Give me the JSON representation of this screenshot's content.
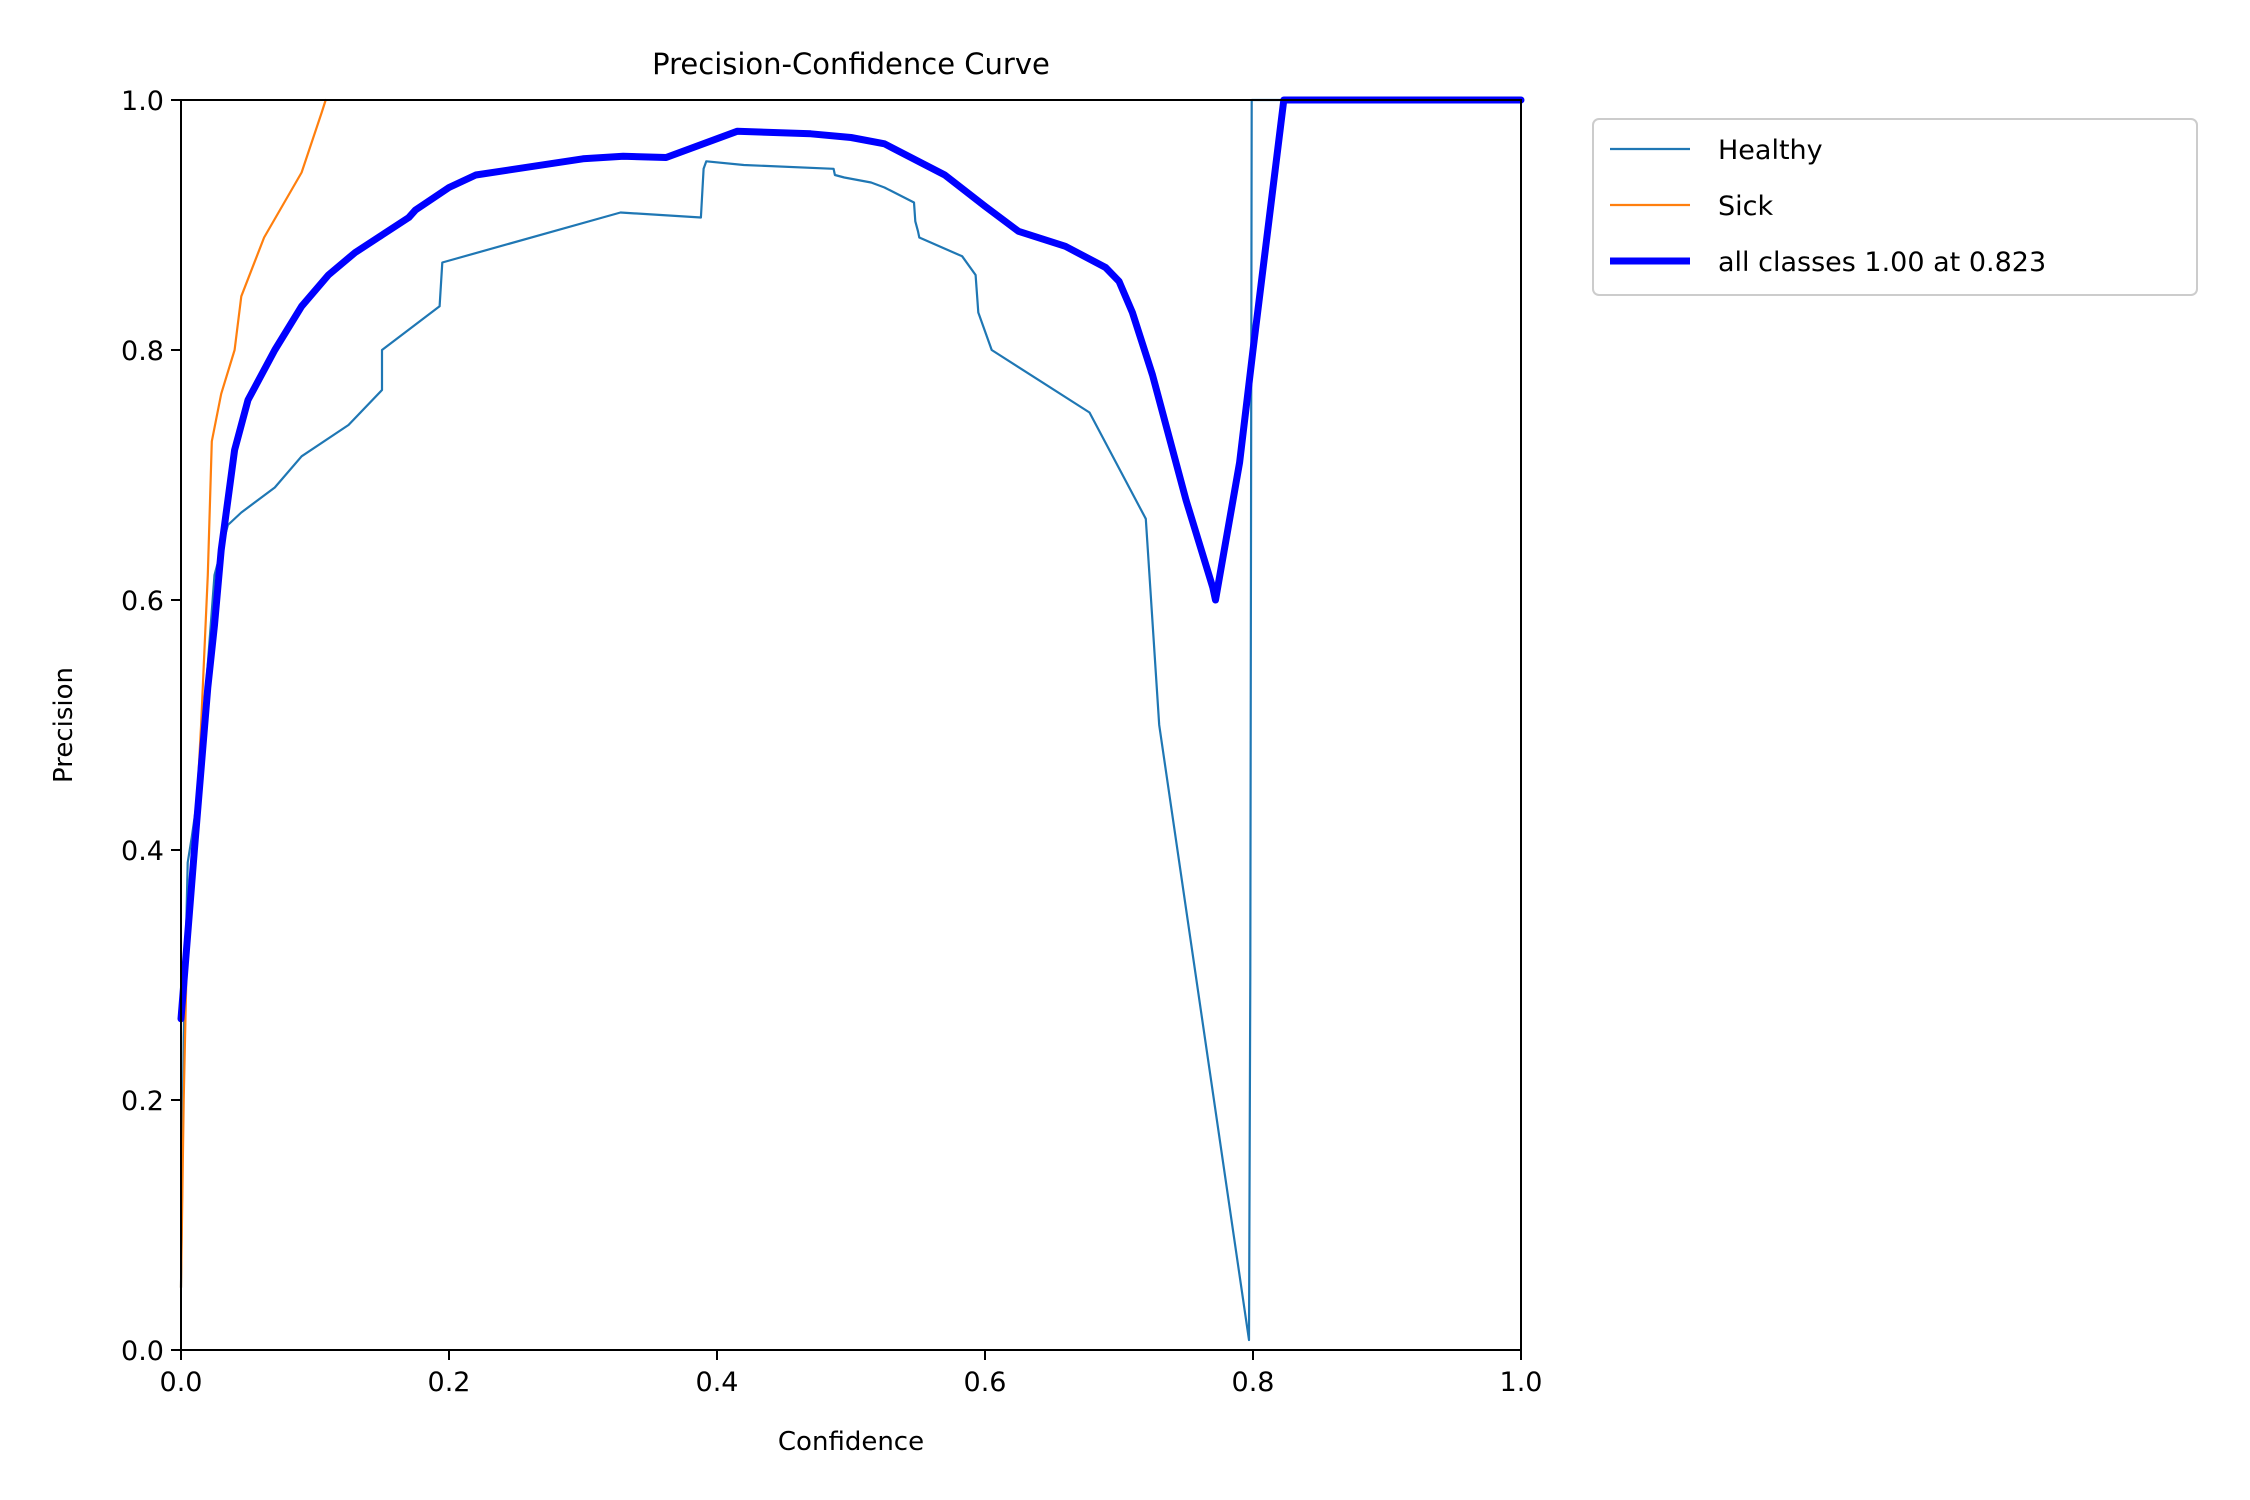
{
  "chart_data": {
    "type": "line",
    "title": "Precision-Confidence Curve",
    "xlabel": "Confidence",
    "ylabel": "Precision",
    "xlim": [
      0,
      1
    ],
    "ylim": [
      0,
      1
    ],
    "xticks": [
      "0.0",
      "0.2",
      "0.4",
      "0.6",
      "0.8",
      "1.0"
    ],
    "yticks": [
      "0.0",
      "0.2",
      "0.4",
      "0.6",
      "0.8",
      "1.0"
    ],
    "grid": false,
    "legend_position": "outside-top-right",
    "series": [
      {
        "name": "Healthy",
        "color": "#1f77b4",
        "x": [
          0.0,
          0.002,
          0.005,
          0.008,
          0.012,
          0.018,
          0.025,
          0.035,
          0.045,
          0.07,
          0.09,
          0.125,
          0.15,
          0.15,
          0.193,
          0.195,
          0.328,
          0.388,
          0.39,
          0.392,
          0.42,
          0.487,
          0.488,
          0.495,
          0.515,
          0.525,
          0.547,
          0.548,
          0.55,
          0.551,
          0.583,
          0.593,
          0.595,
          0.605,
          0.678,
          0.72,
          0.73,
          0.797,
          0.798,
          0.799,
          1.0
        ],
        "y": [
          0.05,
          0.25,
          0.39,
          0.41,
          0.44,
          0.52,
          0.62,
          0.66,
          0.67,
          0.69,
          0.715,
          0.74,
          0.768,
          0.8,
          0.835,
          0.87,
          0.91,
          0.906,
          0.945,
          0.951,
          0.948,
          0.945,
          0.94,
          0.938,
          0.934,
          0.93,
          0.918,
          0.903,
          0.895,
          0.89,
          0.875,
          0.86,
          0.83,
          0.8,
          0.75,
          0.665,
          0.5,
          0.008,
          0.3,
          1.0,
          1.0
        ]
      },
      {
        "name": "Sick",
        "color": "#ff7f0e",
        "x": [
          0.0,
          0.002,
          0.004,
          0.006,
          0.01,
          0.015,
          0.02,
          0.023,
          0.03,
          0.04,
          0.045,
          0.062,
          0.09,
          0.105,
          0.108
        ],
        "y": [
          0.05,
          0.2,
          0.3,
          0.35,
          0.4,
          0.5,
          0.62,
          0.727,
          0.765,
          0.8,
          0.843,
          0.89,
          0.942,
          0.99,
          1.0
        ]
      },
      {
        "name": "all classes 1.00 at 0.823",
        "color": "#0000ff",
        "x": [
          0.0,
          0.01,
          0.02,
          0.025,
          0.03,
          0.04,
          0.05,
          0.07,
          0.09,
          0.11,
          0.13,
          0.15,
          0.17,
          0.175,
          0.2,
          0.22,
          0.3,
          0.33,
          0.362,
          0.415,
          0.47,
          0.5,
          0.525,
          0.57,
          0.6,
          0.625,
          0.66,
          0.69,
          0.7,
          0.71,
          0.725,
          0.74,
          0.75,
          0.77,
          0.772,
          0.79,
          0.8,
          0.823,
          1.0
        ],
        "y": [
          0.265,
          0.4,
          0.53,
          0.58,
          0.64,
          0.72,
          0.76,
          0.8,
          0.835,
          0.86,
          0.878,
          0.892,
          0.906,
          0.912,
          0.93,
          0.94,
          0.953,
          0.955,
          0.954,
          0.975,
          0.973,
          0.97,
          0.965,
          0.94,
          0.915,
          0.895,
          0.883,
          0.866,
          0.855,
          0.83,
          0.78,
          0.72,
          0.68,
          0.61,
          0.6,
          0.71,
          0.8,
          1.0,
          1.0
        ]
      }
    ]
  }
}
